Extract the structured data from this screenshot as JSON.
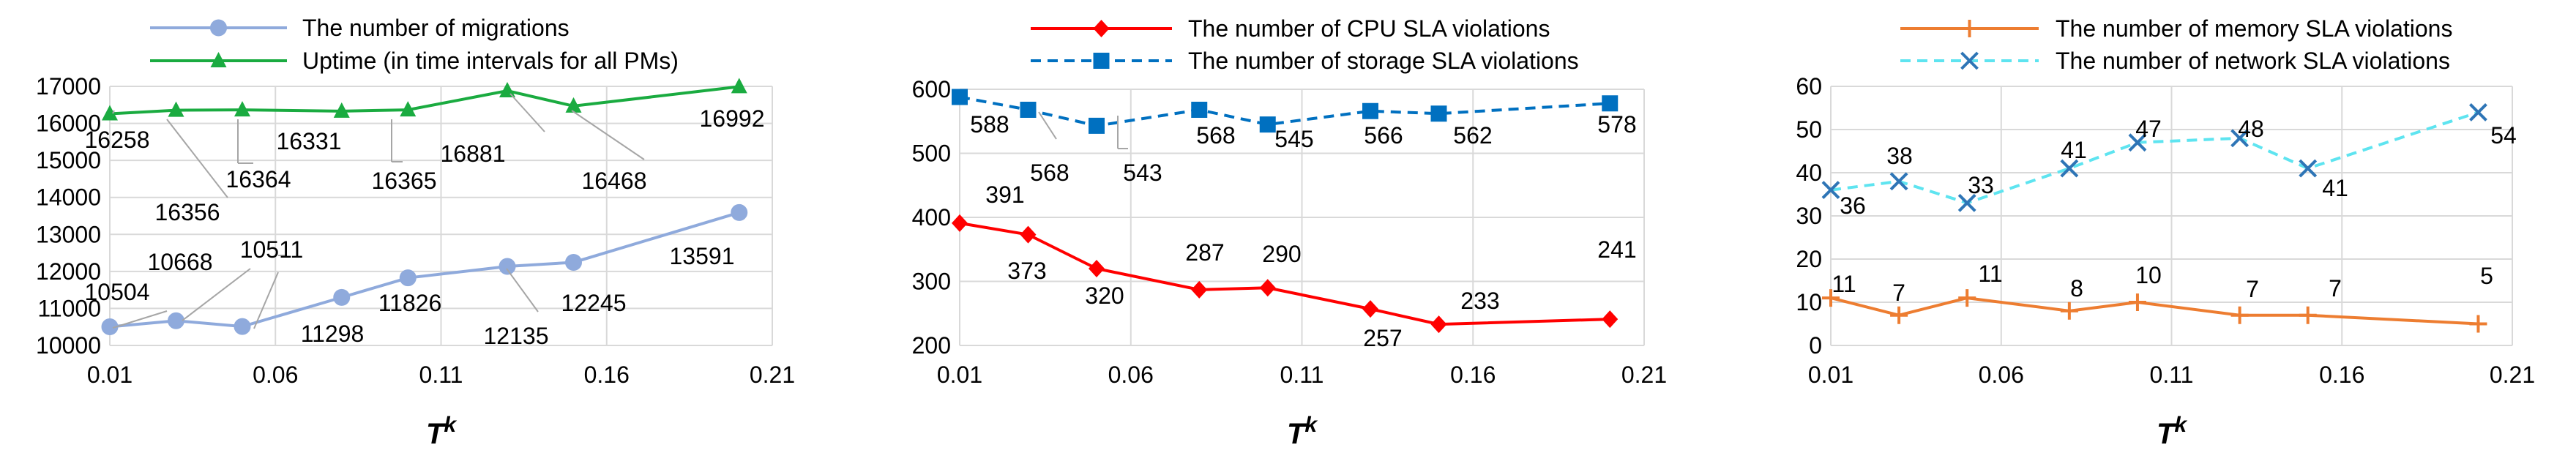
{
  "chart_data": [
    {
      "type": "line",
      "title": "",
      "xlabel_base": "T",
      "xlabel_sup": "k",
      "xticks": [
        "0.01",
        "0.06",
        "0.11",
        "0.16",
        "0.21"
      ],
      "xlim": [
        0.01,
        0.21
      ],
      "ylim": [
        10000,
        17000
      ],
      "yticks": [
        "10000",
        "11000",
        "12000",
        "13000",
        "14000",
        "15000",
        "16000",
        "17000"
      ],
      "grid": true,
      "x": [
        0.01,
        0.03,
        0.05,
        0.08,
        0.1,
        0.13,
        0.15,
        0.2
      ],
      "series": [
        {
          "name": "The number of migrations",
          "color": "#8faadc",
          "marker": "circle",
          "dash": "solid",
          "values": [
            10504,
            10668,
            10511,
            11298,
            11826,
            12135,
            12245,
            13591
          ],
          "labels": [
            "10504",
            "10668",
            "10511",
            "11298",
            "11826",
            "12135",
            "12245",
            "13591"
          ]
        },
        {
          "name": "Uptime (in time intervals for all PMs)",
          "color": "#1aab40",
          "marker": "triangle",
          "dash": "solid",
          "values": [
            16258,
            16356,
            16364,
            16331,
            16365,
            16881,
            16468,
            16992
          ],
          "labels": [
            "16258",
            "16356",
            "16364",
            "16331",
            "16365",
            "16881",
            "16468",
            "16992"
          ]
        }
      ]
    },
    {
      "type": "line",
      "title": "",
      "xlabel_base": "T",
      "xlabel_sup": "k",
      "xticks": [
        "0.01",
        "0.06",
        "0.11",
        "0.16",
        "0.21"
      ],
      "xlim": [
        0.01,
        0.21
      ],
      "ylim": [
        200,
        600
      ],
      "yticks": [
        "200",
        "300",
        "400",
        "500",
        "600"
      ],
      "grid": true,
      "x": [
        0.01,
        0.03,
        0.05,
        0.08,
        0.1,
        0.13,
        0.15,
        0.2
      ],
      "series": [
        {
          "name": "The number of CPU SLA violations",
          "color": "#ff0000",
          "marker": "diamond",
          "dash": "solid",
          "values": [
            391,
            373,
            320,
            287,
            290,
            257,
            233,
            241
          ],
          "labels": [
            "391",
            "373",
            "320",
            "287",
            "290",
            "257",
            "233",
            "241"
          ]
        },
        {
          "name": "The number of storage SLA violations",
          "color": "#0070c0",
          "marker": "square",
          "dash": "dashed",
          "values": [
            588,
            568,
            543,
            568,
            545,
            566,
            562,
            578
          ],
          "labels": [
            "588",
            "568",
            "543",
            "568",
            "545",
            "566",
            "562",
            "578"
          ]
        }
      ]
    },
    {
      "type": "line",
      "title": "",
      "xlabel_base": "T",
      "xlabel_sup": "k",
      "xticks": [
        "0.01",
        "0.06",
        "0.11",
        "0.16",
        "0.21"
      ],
      "xlim": [
        0.01,
        0.21
      ],
      "ylim": [
        0,
        60
      ],
      "yticks": [
        "0",
        "10",
        "20",
        "30",
        "40",
        "50",
        "60"
      ],
      "grid": true,
      "x": [
        0.01,
        0.03,
        0.05,
        0.08,
        0.1,
        0.13,
        0.15,
        0.2
      ],
      "series": [
        {
          "name": "The number of memory SLA violations",
          "color": "#ed7d31",
          "marker": "plus",
          "dash": "solid",
          "values": [
            11,
            7,
            11,
            8,
            10,
            7,
            7,
            5
          ],
          "labels": [
            "11",
            "7",
            "11",
            "8",
            "10",
            "7",
            "7",
            "5"
          ]
        },
        {
          "name": "The number of network SLA violations",
          "color": "#5ee4f0",
          "markerColor": "#2e75b6",
          "marker": "x",
          "dash": "dashed",
          "values": [
            36,
            38,
            33,
            41,
            47,
            48,
            41,
            54
          ],
          "labels": [
            "36",
            "38",
            "33",
            "41",
            "47",
            "48",
            "41",
            "54"
          ]
        }
      ]
    }
  ]
}
